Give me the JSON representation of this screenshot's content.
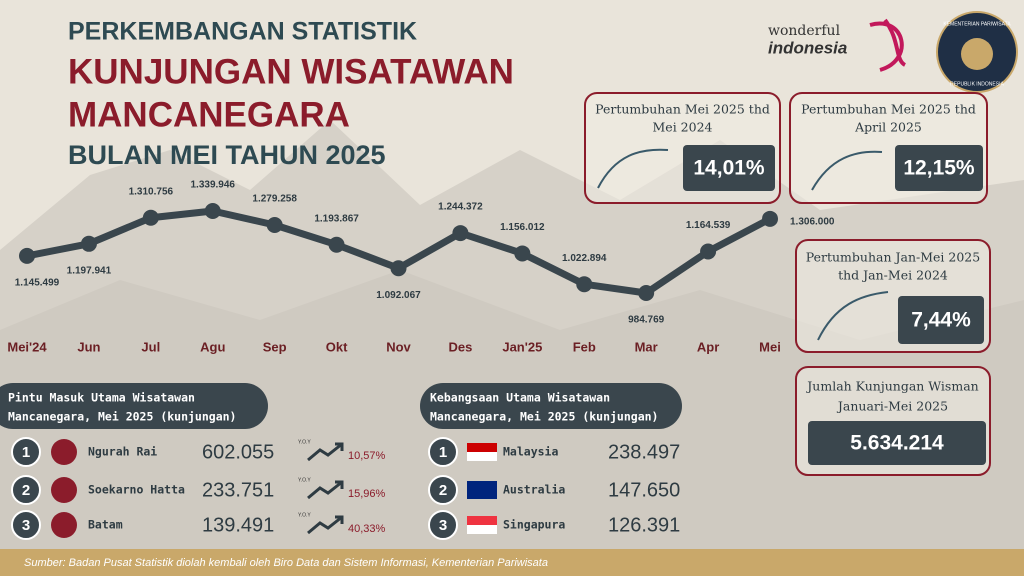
{
  "header": {
    "line1": "PERKEMBANGAN STATISTIK",
    "line2": "KUNJUNGAN WISATAWAN",
    "line3": "MANCANEGARA",
    "line4": "BULAN MEI TAHUN 2025"
  },
  "logo": {
    "brand_top": "wonderful",
    "brand_bottom": "indonesia",
    "emblem_top": "KEMENTERIAN PARIWISATA",
    "emblem_bottom": "REPUBLIK INDONESIA"
  },
  "chart_data": {
    "type": "line",
    "color": "#3a464d",
    "categories": [
      "Mei'24",
      "Jun",
      "Jul",
      "Agu",
      "Sep",
      "Okt",
      "Nov",
      "Des",
      "Jan'25",
      "Feb",
      "Mar",
      "Apr",
      "Mei"
    ],
    "values": [
      1145499,
      1197941,
      1310756,
      1339946,
      1279258,
      1193867,
      1092067,
      1244372,
      1156012,
      1022894,
      984769,
      1164539,
      1306000
    ],
    "value_labels": [
      "1.145.499",
      "1.197.941",
      "1.310.756",
      "1.339.946",
      "1.279.258",
      "1.193.867",
      "1.092.067",
      "1.244.372",
      "1.156.012",
      "1.022.894",
      "984.769",
      "1.164.539",
      "1.306.000"
    ]
  },
  "cards": [
    {
      "title": [
        "Pertumbuhan Mei 2025 thd",
        "Mei 2024"
      ],
      "value": "14,01%"
    },
    {
      "title": [
        "Pertumbuhan Mei 2025 thd",
        "April 2025"
      ],
      "value": "12,15%"
    },
    {
      "title": [
        "Pertumbuhan Jan-Mei 2025",
        "thd Jan-Mei 2024"
      ],
      "value": "7,44%"
    },
    {
      "title": [
        "Jumlah Kunjungan Wisman",
        "Januari-Mei 2025"
      ],
      "value": "5.634.214"
    }
  ],
  "ports": {
    "heading": [
      "Pintu Masuk Utama Wisatawan",
      "Mancanegara, Mei 2025 (kunjungan)"
    ],
    "rows": [
      [
        "1",
        "Ngurah Rai",
        "602.055",
        "Y.O.Y",
        "10,57%"
      ],
      [
        "2",
        "Soekarno Hatta",
        "233.751",
        "Y.O.Y",
        "15,96%"
      ],
      [
        "3",
        "Batam",
        "139.491",
        "Y.O.Y",
        "40,33%"
      ]
    ]
  },
  "nations": {
    "heading": [
      "Kebangsaan Utama Wisatawan",
      "Mancanegara, Mei 2025 (kunjungan)"
    ],
    "rows": [
      [
        "1",
        "Malaysia",
        "238.497"
      ],
      [
        "2",
        "Australia",
        "147.650"
      ],
      [
        "3",
        "Singapura",
        "126.391"
      ]
    ]
  },
  "source": "Sumber:  Badan Pusat Statistik diolah kembali oleh Biro Data dan Sistem Informasi, Kementerian Pariwisata"
}
